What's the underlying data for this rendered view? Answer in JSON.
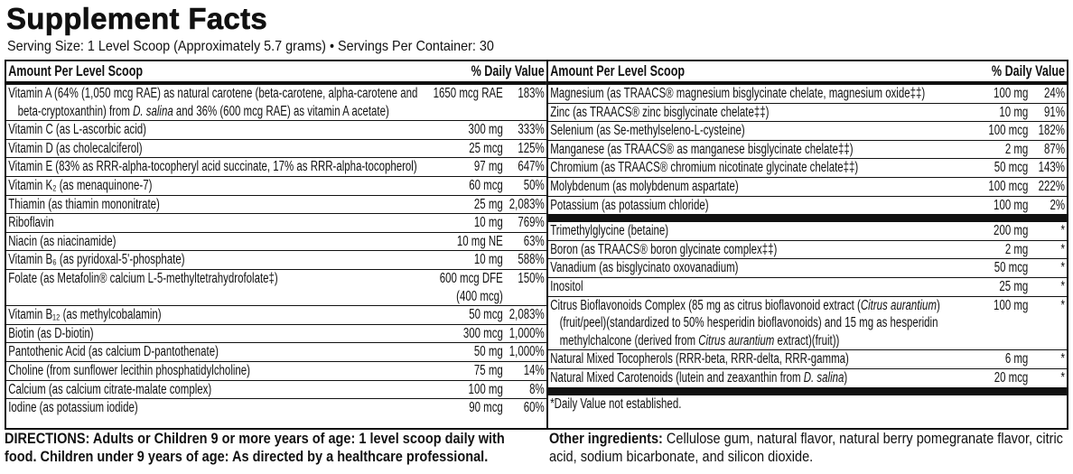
{
  "title": "Supplement Facts",
  "serving": "Serving Size: 1 Level Scoop (Approximately 5.7 grams) • Servings Per Container: 30",
  "left": {
    "header_name": "Amount Per Level Scoop",
    "header_dv": "% Daily Value",
    "rows": [
      {
        "parts": [
          {
            "t": "Vitamin A (64% (1,050 mcg RAE) as natural carotene (beta-carotene, alpha-carotene and beta-cryptoxanthin) from ",
            "i": false
          },
          {
            "t": "D. salina",
            "i": true
          },
          {
            "t": " and 36% (600 mcg RAE) as vitamin A acetate)",
            "i": false
          }
        ],
        "amount": "1650 mcg RAE",
        "dv": "183%"
      },
      {
        "parts": [
          {
            "t": "Vitamin C (as L-ascorbic acid)",
            "i": false
          }
        ],
        "amount": "300 mg",
        "dv": "333%"
      },
      {
        "parts": [
          {
            "t": "Vitamin D (as cholecalciferol)",
            "i": false
          }
        ],
        "amount": "25 mcg",
        "dv": "125%"
      },
      {
        "parts": [
          {
            "t": "Vitamin E (83% as RRR-alpha-tocopheryl acid succinate, 17% as RRR-alpha-tocopherol)",
            "i": false
          }
        ],
        "amount": "97 mg",
        "dv": "647%"
      },
      {
        "parts": [
          {
            "t": "Vitamin K₂ (as menaquinone-7)",
            "i": false
          }
        ],
        "amount": "60 mcg",
        "dv": "50%"
      },
      {
        "parts": [
          {
            "t": "Thiamin (as thiamin mononitrate)",
            "i": false
          }
        ],
        "amount": "25 mg",
        "dv": "2,083%"
      },
      {
        "parts": [
          {
            "t": "Riboflavin",
            "i": false
          }
        ],
        "amount": "10 mg",
        "dv": "769%"
      },
      {
        "parts": [
          {
            "t": "Niacin (as niacinamide)",
            "i": false
          }
        ],
        "amount": "10 mg NE",
        "dv": "63%"
      },
      {
        "parts": [
          {
            "t": "Vitamin B₆ (as pyridoxal-5'-phosphate)",
            "i": false
          }
        ],
        "amount": "10 mg",
        "dv": "588%"
      },
      {
        "parts": [
          {
            "t": "Folate (as Metafolin® calcium L-5-methyltetrahydrofolate‡)",
            "i": false
          }
        ],
        "amount": "600 mcg DFE (400 mcg)",
        "dv": "150%"
      },
      {
        "parts": [
          {
            "t": "Vitamin B₁₂ (as methylcobalamin)",
            "i": false
          }
        ],
        "amount": "50 mcg",
        "dv": "2,083%"
      },
      {
        "parts": [
          {
            "t": "Biotin (as D-biotin)",
            "i": false
          }
        ],
        "amount": "300 mcg",
        "dv": "1,000%"
      },
      {
        "parts": [
          {
            "t": "Pantothenic Acid (as calcium D-pantothenate)",
            "i": false
          }
        ],
        "amount": "50 mg",
        "dv": "1,000%"
      },
      {
        "parts": [
          {
            "t": "Choline (from sunflower lecithin phosphatidylcholine)",
            "i": false
          }
        ],
        "amount": "75 mg",
        "dv": "14%"
      },
      {
        "parts": [
          {
            "t": "Calcium (as calcium citrate-malate complex)",
            "i": false
          }
        ],
        "amount": "100 mg",
        "dv": "8%"
      },
      {
        "parts": [
          {
            "t": "Iodine (as potassium iodide)",
            "i": false
          }
        ],
        "amount": "90 mcg",
        "dv": "60%"
      }
    ]
  },
  "right": {
    "header_name": "Amount Per Level Scoop",
    "header_dv": "% Daily Value",
    "rows_a": [
      {
        "parts": [
          {
            "t": "Magnesium (as TRAACS® magnesium bisglycinate chelate, magnesium oxide‡‡)",
            "i": false
          }
        ],
        "amount": "100 mg",
        "dv": "24%"
      },
      {
        "parts": [
          {
            "t": "Zinc (as TRAACS® zinc bisglycinate chelate‡‡)",
            "i": false
          }
        ],
        "amount": "10 mg",
        "dv": "91%"
      },
      {
        "parts": [
          {
            "t": "Selenium (as Se-methylseleno-L-cysteine)",
            "i": false
          }
        ],
        "amount": "100 mcg",
        "dv": "182%"
      },
      {
        "parts": [
          {
            "t": "Manganese (as TRAACS® as manganese bisglycinate chelate‡‡)",
            "i": false
          }
        ],
        "amount": "2 mg",
        "dv": "87%"
      },
      {
        "parts": [
          {
            "t": "Chromium (as TRAACS® chromium nicotinate glycinate chelate‡‡)",
            "i": false
          }
        ],
        "amount": "50 mcg",
        "dv": "143%"
      },
      {
        "parts": [
          {
            "t": "Molybdenum (as molybdenum aspartate)",
            "i": false
          }
        ],
        "amount": "100 mcg",
        "dv": "222%"
      },
      {
        "parts": [
          {
            "t": "Potassium (as potassium chloride)",
            "i": false
          }
        ],
        "amount": "100 mg",
        "dv": "2%"
      }
    ],
    "rows_b": [
      {
        "parts": [
          {
            "t": "Trimethylglycine (betaine)",
            "i": false
          }
        ],
        "amount": "200 mg",
        "dv": "*"
      },
      {
        "parts": [
          {
            "t": "Boron (as TRAACS® boron glycinate complex‡‡)",
            "i": false
          }
        ],
        "amount": "2 mg",
        "dv": "*"
      },
      {
        "parts": [
          {
            "t": "Vanadium (as bisglycinato oxovanadium)",
            "i": false
          }
        ],
        "amount": "50 mcg",
        "dv": "*"
      },
      {
        "parts": [
          {
            "t": "Inositol",
            "i": false
          }
        ],
        "amount": "25 mg",
        "dv": "*"
      },
      {
        "parts": [
          {
            "t": "Citrus Bioflavonoids Complex (85 mg as citrus bioflavonoid extract (",
            "i": false
          },
          {
            "t": "Citrus aurantium",
            "i": true
          },
          {
            "t": ") (fruit/peel)(standardized to 50% hesperidin bioflavonoids) and 15 mg as hesperidin methylchalcone (derived from ",
            "i": false
          },
          {
            "t": "Citrus aurantium",
            "i": true
          },
          {
            "t": " extract)(fruit))",
            "i": false
          }
        ],
        "amount": "100 mg",
        "dv": "*"
      },
      {
        "parts": [
          {
            "t": "Natural Mixed Tocopherols (RRR-beta, RRR-delta, RRR-gamma)",
            "i": false
          }
        ],
        "amount": "6 mg",
        "dv": "*"
      },
      {
        "parts": [
          {
            "t": "Natural Mixed Carotenoids (lutein and zeaxanthin from ",
            "i": false
          },
          {
            "t": "D. salina",
            "i": true
          },
          {
            "t": ")",
            "i": false
          }
        ],
        "amount": "20 mcg",
        "dv": "*"
      }
    ],
    "footnote": "*Daily Value not established."
  },
  "directions": "DIRECTIONS: Adults or Children 9 or more years of age: 1 level scoop daily with food. Children under 9 years of age: As directed by a healthcare professional.",
  "other_label": "Other ingredients:",
  "other_text": " Cellulose gum, natural flavor, natural berry pomegranate flavor, citric acid, sodium bicarbonate, and silicon dioxide."
}
